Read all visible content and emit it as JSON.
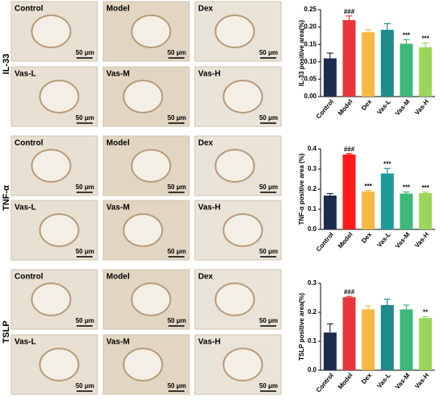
{
  "panels": [
    {
      "label": "IL-33",
      "images": [
        "Control",
        "Model",
        "Dex",
        "Vas-L",
        "Vas-M",
        "Vas-H"
      ],
      "scale": "50 μm"
    },
    {
      "label": "TNF-α",
      "images": [
        "Control",
        "Model",
        "Dex",
        "Vas-L",
        "Vas-M",
        "Vas-H"
      ],
      "scale": "50 μm"
    },
    {
      "label": "TSLP",
      "images": [
        "Control",
        "Model",
        "Dex",
        "Vas-L",
        "Vas-M",
        "Vas-H"
      ],
      "scale": "50 μm"
    }
  ],
  "chart_data": [
    {
      "type": "bar",
      "y_label": "IL-33 positive area(%)",
      "categories": [
        "Control",
        "Model",
        "Dex",
        "Vas-L",
        "Vas-M",
        "Vas-H"
      ],
      "values": [
        0.11,
        0.22,
        0.185,
        0.192,
        0.152,
        0.142
      ],
      "errors": [
        0.015,
        0.012,
        0.007,
        0.018,
        0.012,
        0.012
      ],
      "annotations": [
        null,
        "###",
        null,
        null,
        "***",
        "***"
      ],
      "colors": [
        "#1e2c4c",
        "#e8363a",
        "#f5b942",
        "#1f8a8a",
        "#3cb878",
        "#9bd65a"
      ],
      "ylim": [
        0,
        0.25
      ],
      "yticks": [
        {
          "value": 0,
          "label": "0.00"
        },
        0.05,
        {
          "value": 0.1,
          "label": "0.10"
        },
        0.15,
        {
          "value": 0.2,
          "label": "0.20"
        },
        0.25
      ]
    },
    {
      "type": "bar",
      "y_label": "TNF-α positive area (%)",
      "categories": [
        "Control",
        "Model",
        "Dex",
        "Vas-L",
        "Vas-M",
        "Vas-H"
      ],
      "values": [
        0.168,
        0.372,
        0.188,
        0.278,
        0.178,
        0.18
      ],
      "errors": [
        0.01,
        0.005,
        0.005,
        0.025,
        0.008,
        0.005
      ],
      "annotations": [
        null,
        "###",
        "***",
        "***",
        "***",
        "***"
      ],
      "colors": [
        "#1e2c4c",
        "#ff1a1a",
        "#f5b942",
        "#1f9a9a",
        "#3cb878",
        "#9bd65a"
      ],
      "ylim": [
        0,
        0.4
      ],
      "yticks": [
        {
          "value": 0,
          "label": "0.0"
        },
        0.1,
        0.2,
        0.3,
        0.4
      ]
    },
    {
      "type": "bar",
      "y_label": "TSLP positive area(%)",
      "categories": [
        "Control",
        "Model",
        "Dex",
        "Vas-L",
        "Vas-M",
        "Vas-H"
      ],
      "values": [
        0.13,
        0.252,
        0.21,
        0.225,
        0.21,
        0.18
      ],
      "errors": [
        0.03,
        0.003,
        0.012,
        0.02,
        0.015,
        0.005
      ],
      "annotations": [
        null,
        "###",
        null,
        null,
        null,
        "**"
      ],
      "colors": [
        "#1e2c4c",
        "#e8363a",
        "#f5b942",
        "#1f8a8a",
        "#3cb878",
        "#9bd65a"
      ],
      "ylim": [
        0,
        0.3
      ],
      "yticks": [
        {
          "value": 0,
          "label": "0.0"
        },
        0.1,
        0.2,
        0.3
      ]
    }
  ]
}
